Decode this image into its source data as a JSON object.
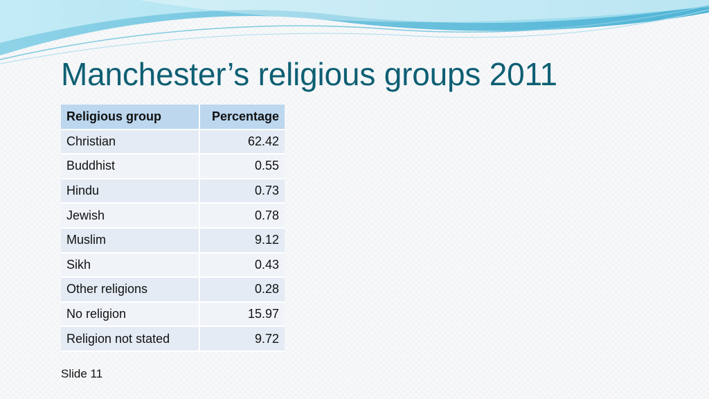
{
  "title": "Manchester’s religious groups 2011",
  "table": {
    "headers": [
      "Religious group",
      "Percentage"
    ],
    "rows": [
      {
        "group": "Christian",
        "pct": "62.42"
      },
      {
        "group": "Buddhist",
        "pct": "0.55"
      },
      {
        "group": "Hindu",
        "pct": "0.73"
      },
      {
        "group": "Jewish",
        "pct": "0.78"
      },
      {
        "group": "Muslim",
        "pct": "9.12"
      },
      {
        "group": "Sikh",
        "pct": "0.43"
      },
      {
        "group": "Other religions",
        "pct": "0.28"
      },
      {
        "group": "No religion",
        "pct": "15.97"
      },
      {
        "group": "Religion not stated",
        "pct": "9.72"
      }
    ]
  },
  "footer": {
    "slide_label": "Slide 11"
  },
  "colors": {
    "title": "#0e5f73",
    "header_bg": "#bcd7ee",
    "swoosh": "#6ec3de"
  }
}
